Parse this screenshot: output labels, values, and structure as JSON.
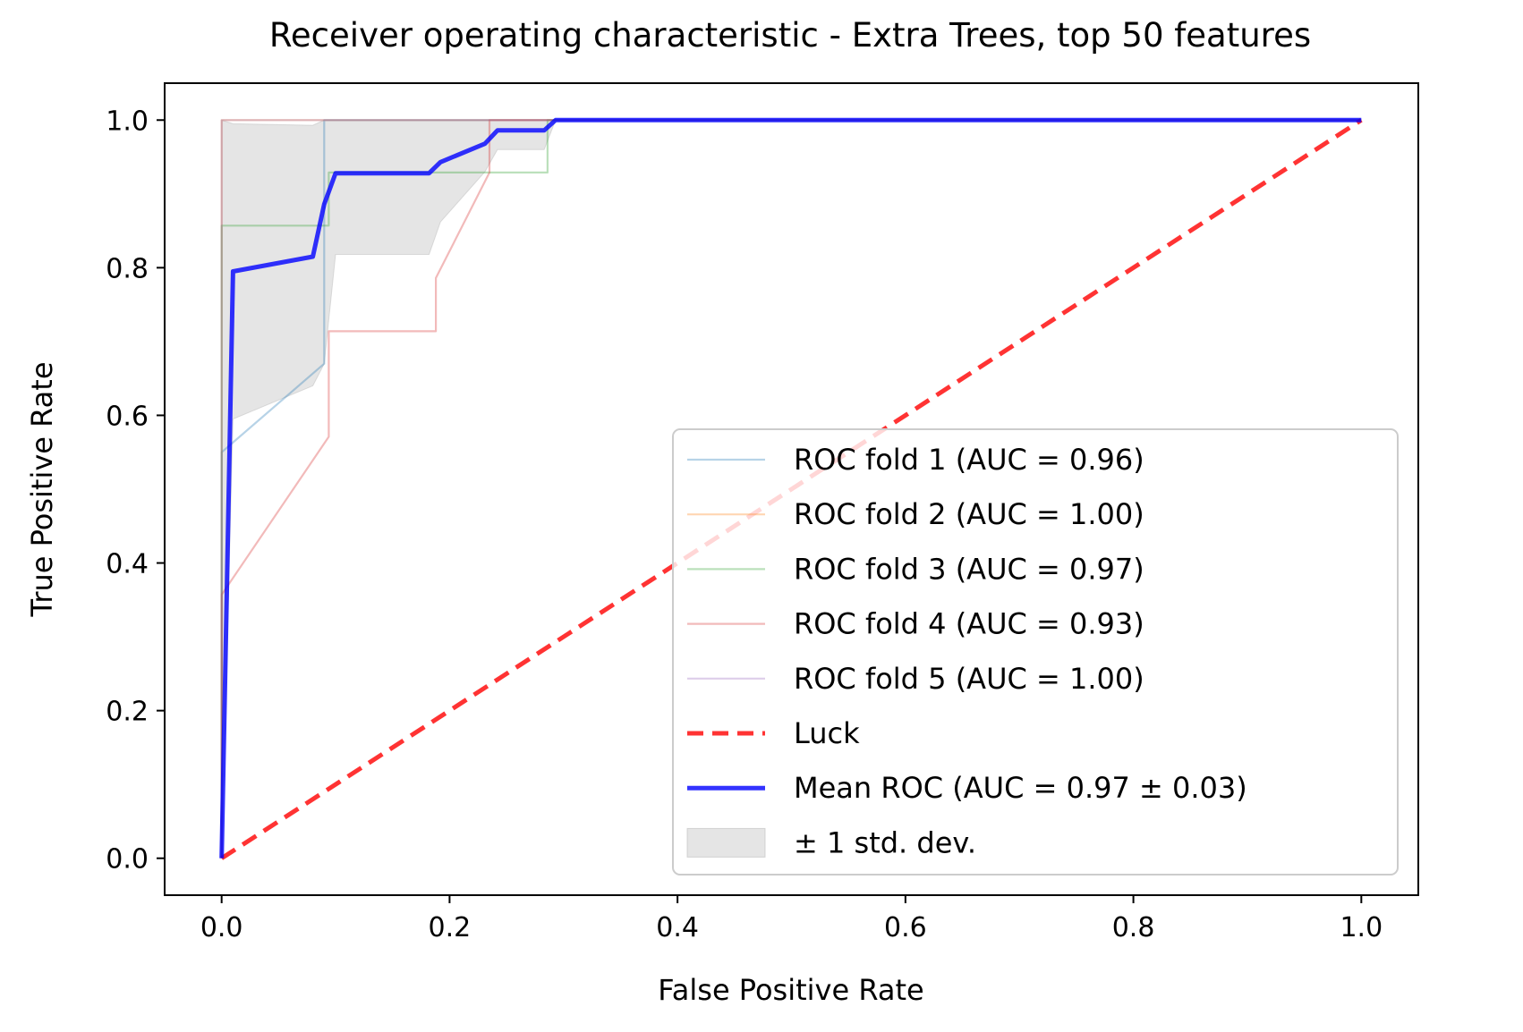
{
  "chart_data": {
    "type": "line",
    "title": "Receiver operating characteristic - Extra Trees, top 50 features",
    "xlabel": "False Positive Rate",
    "ylabel": "True Positive Rate",
    "xlim": [
      -0.05,
      1.05
    ],
    "ylim": [
      -0.05,
      1.05
    ],
    "xticks": [
      "0.0",
      "0.2",
      "0.4",
      "0.6",
      "0.8",
      "1.0"
    ],
    "yticks": [
      "0.0",
      "0.2",
      "0.4",
      "0.6",
      "0.8",
      "1.0"
    ],
    "grid": false,
    "legend_position": "lower right",
    "series": [
      {
        "name": "ROC fold 1 (AUC = 0.96)",
        "color": "#1f77b4",
        "style": "thin",
        "x": [
          0.0,
          0.0,
          0.0,
          0.09,
          0.09,
          0.09,
          0.09,
          0.09,
          0.09,
          1.0
        ],
        "y": [
          0.0,
          0.54,
          0.55,
          0.67,
          0.8,
          0.82,
          0.91,
          0.93,
          1.0,
          1.0
        ]
      },
      {
        "name": "ROC fold 2 (AUC = 1.00)",
        "color": "#ff7f0e",
        "style": "thin",
        "x": [
          0.0,
          0.0,
          0.0,
          1.0
        ],
        "y": [
          0.0,
          0.57,
          1.0,
          1.0
        ]
      },
      {
        "name": "ROC fold 3 (AUC = 0.97)",
        "color": "#2ca02c",
        "style": "thin",
        "x": [
          0.0,
          0.0,
          0.0,
          0.094,
          0.094,
          0.286,
          0.286,
          0.286,
          1.0
        ],
        "y": [
          0.0,
          0.64,
          0.857,
          0.857,
          0.929,
          0.929,
          0.96,
          1.0,
          1.0
        ]
      },
      {
        "name": "ROC fold 4 (AUC = 0.93)",
        "color": "#d62728",
        "style": "thin",
        "x": [
          0.0,
          0.0,
          0.094,
          0.094,
          0.188,
          0.188,
          0.235,
          0.235,
          0.235,
          1.0
        ],
        "y": [
          0.0,
          0.357,
          0.571,
          0.714,
          0.714,
          0.786,
          0.929,
          0.95,
          1.0,
          1.0
        ]
      },
      {
        "name": "ROC fold 5 (AUC = 1.00)",
        "color": "#9467bd",
        "style": "thin",
        "x": [
          0.0,
          0.0,
          1.0
        ],
        "y": [
          0.0,
          1.0,
          1.0
        ]
      },
      {
        "name": "Luck",
        "color": "#ff0000",
        "style": "dashed",
        "x": [
          0.0,
          1.0
        ],
        "y": [
          0.0,
          1.0
        ]
      },
      {
        "name": "Mean ROC (AUC = 0.97 ± 0.03)",
        "color": "#0000ff",
        "style": "thick",
        "x": [
          0.0,
          0.01,
          0.08,
          0.09,
          0.1,
          0.182,
          0.192,
          0.231,
          0.242,
          0.283,
          0.293,
          1.0
        ],
        "y": [
          0.0,
          0.795,
          0.815,
          0.886,
          0.928,
          0.928,
          0.943,
          0.968,
          0.986,
          0.986,
          1.0,
          1.0
        ]
      }
    ],
    "band": {
      "name": "± 1 std. dev.",
      "color": "#bdbdbd",
      "x": [
        0.0,
        0.01,
        0.08,
        0.09,
        0.1,
        0.182,
        0.192,
        0.231,
        0.242,
        0.283,
        0.293,
        1.0
      ],
      "upper": [
        1.0,
        0.995,
        0.993,
        1.0,
        1.0,
        1.0,
        1.0,
        1.0,
        1.0,
        1.0,
        1.0,
        1.0
      ],
      "lower": [
        0.0,
        0.595,
        0.64,
        0.67,
        0.818,
        0.818,
        0.862,
        0.93,
        0.96,
        0.96,
        1.0,
        1.0
      ]
    }
  }
}
